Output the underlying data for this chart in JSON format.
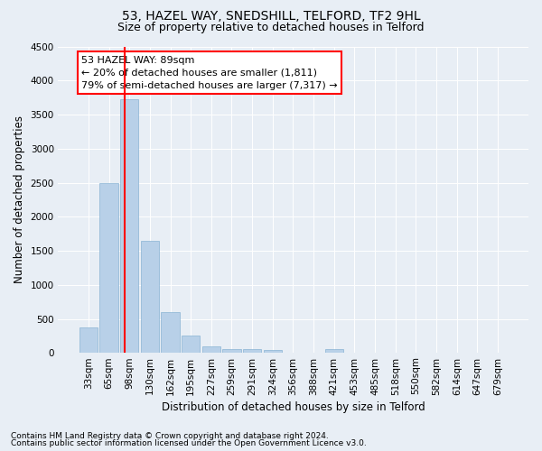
{
  "title": "53, HAZEL WAY, SNEDSHILL, TELFORD, TF2 9HL",
  "subtitle": "Size of property relative to detached houses in Telford",
  "xlabel": "Distribution of detached houses by size in Telford",
  "ylabel": "Number of detached properties",
  "footnote1": "Contains HM Land Registry data © Crown copyright and database right 2024.",
  "footnote2": "Contains public sector information licensed under the Open Government Licence v3.0.",
  "annotation_title": "53 HAZEL WAY: 89sqm",
  "annotation_line1": "← 20% of detached houses are smaller (1,811)",
  "annotation_line2": "79% of semi-detached houses are larger (7,317) →",
  "categories": [
    "33sqm",
    "65sqm",
    "98sqm",
    "130sqm",
    "162sqm",
    "195sqm",
    "227sqm",
    "259sqm",
    "291sqm",
    "324sqm",
    "356sqm",
    "388sqm",
    "421sqm",
    "453sqm",
    "485sqm",
    "518sqm",
    "550sqm",
    "582sqm",
    "614sqm",
    "647sqm",
    "679sqm"
  ],
  "values": [
    380,
    2500,
    3720,
    1650,
    600,
    250,
    100,
    60,
    50,
    40,
    0,
    0,
    60,
    0,
    0,
    0,
    0,
    0,
    0,
    0,
    0
  ],
  "bar_color": "#b8d0e8",
  "bar_edge_color": "#8ab4d4",
  "vline_x_index": 1.78,
  "vline_color": "red",
  "ylim": [
    0,
    4500
  ],
  "yticks": [
    0,
    500,
    1000,
    1500,
    2000,
    2500,
    3000,
    3500,
    4000,
    4500
  ],
  "bg_color": "#e8eef5",
  "plot_bg_color": "#e8eef5",
  "annotation_box_color": "white",
  "annotation_box_edge": "red",
  "title_fontsize": 10,
  "subtitle_fontsize": 9,
  "axis_label_fontsize": 8.5,
  "tick_fontsize": 7.5,
  "annotation_fontsize": 8,
  "footnote_fontsize": 6.5
}
